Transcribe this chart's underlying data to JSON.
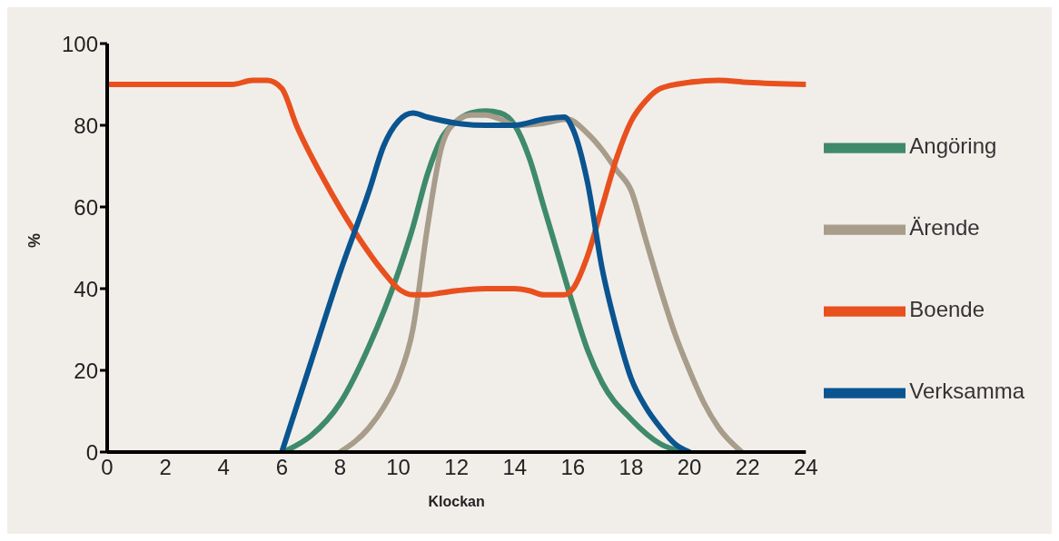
{
  "chart_data": {
    "type": "line",
    "xlabel": "Klockan",
    "ylabel": "%",
    "xlim": [
      0,
      24
    ],
    "xticks": [
      0,
      2,
      4,
      6,
      8,
      10,
      12,
      14,
      16,
      18,
      20,
      22,
      24
    ],
    "ylim": [
      0,
      100
    ],
    "yticks": [
      0,
      20,
      40,
      60,
      80,
      100
    ],
    "grid": false,
    "legend": "right",
    "marker": "none",
    "line_style": "solid",
    "series": [
      {
        "name": "Angöring",
        "color": "#3f8a6a",
        "x": [
          6.2,
          7,
          8,
          9,
          10,
          10.5,
          11,
          11.5,
          12,
          12.5,
          13,
          13.5,
          14,
          14.5,
          15,
          15.5,
          16,
          16.5,
          17,
          18,
          19,
          19.8
        ],
        "values": [
          0.5,
          4,
          12,
          26,
          44,
          55,
          68,
          77,
          81,
          83,
          83.5,
          83,
          80,
          72,
          60,
          48,
          36,
          25,
          17,
          8,
          2,
          0
        ]
      },
      {
        "name": "Ärende",
        "color": "#a89c8a",
        "x": [
          8,
          9,
          9.5,
          10,
          10.5,
          11,
          11.5,
          12,
          12.5,
          13,
          13.5,
          14,
          15,
          15.8,
          16.5,
          17,
          17.5,
          18,
          18.5,
          19,
          19.5,
          20,
          20.5,
          21,
          21.8
        ],
        "values": [
          0,
          6,
          11,
          18,
          30,
          55,
          75,
          81,
          82.5,
          82.5,
          81.5,
          80,
          80.5,
          81.5,
          78,
          74,
          69,
          64,
          52,
          40,
          29,
          20,
          12,
          6,
          0
        ]
      },
      {
        "name": "Boende",
        "color": "#e8501e",
        "x": [
          0,
          4.3,
          5,
          5.5,
          6,
          6.5,
          7.5,
          8.5,
          9.5,
          10,
          10.5,
          11,
          11.5,
          12,
          13,
          14,
          14.5,
          15,
          15.7,
          16,
          16.5,
          17,
          17.5,
          18,
          18.5,
          19,
          20,
          21,
          22,
          24
        ],
        "values": [
          90,
          90,
          91,
          91,
          89,
          80,
          66,
          54,
          44,
          40,
          38.5,
          38.5,
          39,
          39.5,
          40,
          40,
          39.5,
          38.5,
          38.5,
          40,
          48,
          60,
          72,
          81,
          86,
          89,
          90.5,
          91,
          90.5,
          90
        ]
      },
      {
        "name": "Verksamma",
        "color": "#0a5490",
        "x": [
          6,
          7,
          8,
          9,
          9.5,
          10,
          10.5,
          11,
          12,
          13,
          14,
          15,
          15.7,
          16,
          16.5,
          17,
          17.5,
          18,
          18.5,
          19,
          19.5,
          20
        ],
        "values": [
          0,
          22,
          44,
          64,
          75,
          81,
          83,
          82,
          80.5,
          80,
          80,
          81.5,
          82,
          79,
          66,
          45,
          30,
          18,
          11,
          6,
          2,
          0
        ]
      }
    ]
  }
}
